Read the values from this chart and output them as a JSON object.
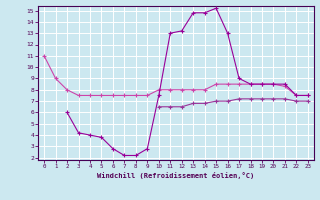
{
  "xlabel": "Windchill (Refroidissement éolien,°C)",
  "bg_color": "#cce8f0",
  "grid_color": "#ffffff",
  "line_color1": "#cc44aa",
  "line_color2": "#990099",
  "line_color3": "#993399",
  "xlim": [
    -0.5,
    23.5
  ],
  "ylim": [
    1.8,
    15.4
  ],
  "yticks": [
    2,
    3,
    4,
    5,
    6,
    7,
    8,
    9,
    10,
    11,
    12,
    13,
    14,
    15
  ],
  "xticks": [
    0,
    1,
    2,
    3,
    4,
    5,
    6,
    7,
    8,
    9,
    10,
    11,
    12,
    13,
    14,
    15,
    16,
    17,
    18,
    19,
    20,
    21,
    22,
    23
  ],
  "curve1_x": [
    0,
    1,
    2,
    3,
    4,
    5,
    6,
    7,
    8,
    9,
    10,
    11,
    12,
    13,
    14,
    15,
    16,
    17,
    18,
    19,
    20,
    21,
    22,
    23
  ],
  "curve1_y": [
    11.0,
    9.0,
    8.0,
    7.5,
    7.5,
    7.5,
    7.5,
    7.5,
    7.5,
    7.5,
    8.0,
    8.0,
    8.0,
    8.0,
    8.0,
    8.5,
    8.5,
    8.5,
    8.5,
    8.5,
    8.5,
    8.3,
    7.5,
    7.5
  ],
  "curve2_x": [
    2,
    3,
    4,
    5,
    6,
    7,
    8,
    9,
    10,
    11,
    12,
    13,
    14,
    15,
    16,
    17,
    18,
    19,
    20,
    21,
    22,
    23
  ],
  "curve2_y": [
    6.0,
    4.2,
    4.0,
    3.8,
    2.8,
    2.2,
    2.2,
    2.8,
    7.5,
    13.0,
    13.2,
    14.8,
    14.8,
    15.2,
    13.0,
    9.0,
    8.5,
    8.5,
    8.5,
    8.5,
    7.5,
    7.5
  ],
  "curve3_x": [
    10,
    11,
    12,
    13,
    14,
    15,
    16,
    17,
    18,
    19,
    20,
    21,
    22,
    23
  ],
  "curve3_y": [
    6.5,
    6.5,
    6.5,
    6.8,
    6.8,
    7.0,
    7.0,
    7.2,
    7.2,
    7.2,
    7.2,
    7.2,
    7.0,
    7.0
  ]
}
